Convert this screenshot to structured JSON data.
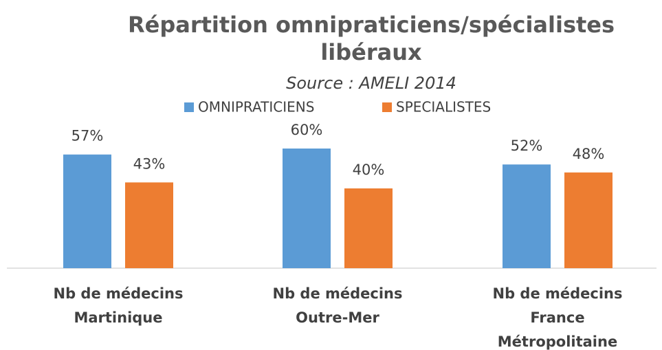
{
  "chart_data": {
    "type": "bar",
    "title": [
      "Répartition omnipraticiens/spécialistes",
      "libéraux"
    ],
    "subtitle": "Source : AMELI 2014",
    "categories": [
      [
        "Nb de médecins",
        "Martinique"
      ],
      [
        "Nb de médecins",
        "Outre-Mer"
      ],
      [
        "Nb de médecins",
        "France",
        "Métropolitaine"
      ]
    ],
    "series": [
      {
        "name": "OMNIPRATICIENS",
        "color": "#5b9bd5",
        "values": [
          57,
          60,
          52
        ],
        "value_labels": [
          "57%",
          "60%",
          "52%"
        ]
      },
      {
        "name": "SPECIALISTES",
        "color": "#ed7d31",
        "values": [
          43,
          40,
          48
        ],
        "value_labels": [
          "43%",
          "40%",
          "48%"
        ]
      }
    ],
    "legend": "top"
  }
}
